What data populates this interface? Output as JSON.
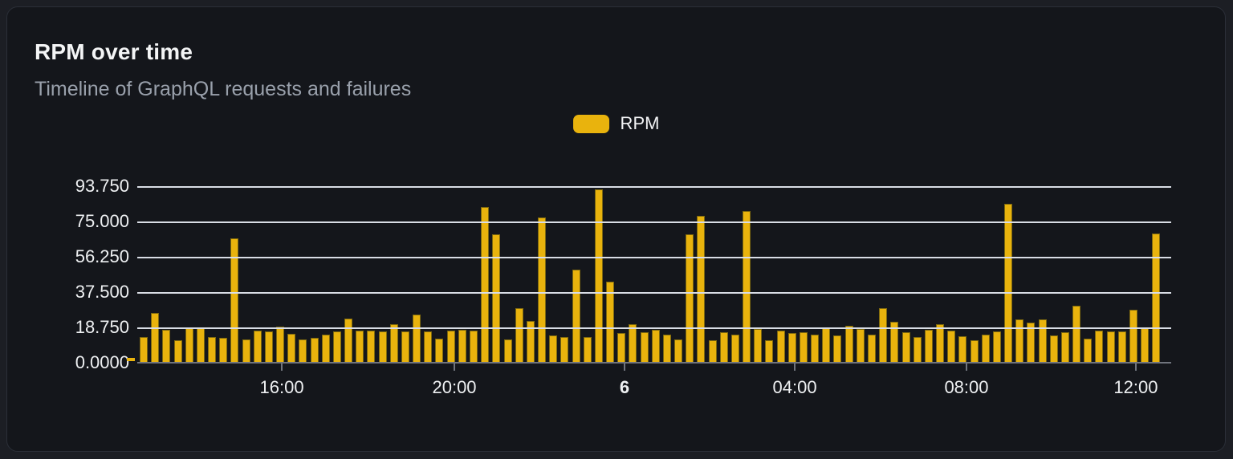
{
  "card": {
    "title": "RPM over time",
    "subtitle": "Timeline of GraphQL requests and failures"
  },
  "legend": {
    "label": "RPM",
    "swatch_color": "#e9b30d"
  },
  "colors": {
    "page_bg": "#1c1e24",
    "card_bg": "#14161b",
    "card_border": "#2b2f38",
    "bar_fill": "#e9b30d",
    "bar_stroke": "#7d680f",
    "gridline": "#d9dde5",
    "axis": "#70747d",
    "title_text": "#f4f5f6",
    "subtitle_text": "#99a0ab",
    "tick_text": "#eef0f2"
  },
  "chart_data": {
    "type": "bar",
    "title": "RPM over time",
    "subtitle": "Timeline of GraphQL requests and failures",
    "xlabel": "",
    "ylabel": "",
    "ylim": [
      0,
      93.75
    ],
    "grid": "horizontal",
    "legend_position": "top-center",
    "y_ticks": [
      {
        "label": "93.750",
        "value": 93.75
      },
      {
        "label": "75.000",
        "value": 75
      },
      {
        "label": "56.250",
        "value": 56.25
      },
      {
        "label": "37.500",
        "value": 37.5
      },
      {
        "label": "18.750",
        "value": 18.75
      },
      {
        "label": "0.0000",
        "value": 0
      }
    ],
    "x_ticks": [
      {
        "label": "16:00",
        "pos_pct": 13.98,
        "bold": false
      },
      {
        "label": "20:00",
        "pos_pct": 30.67,
        "bold": false
      },
      {
        "label": "6",
        "pos_pct": 47.13,
        "bold": true
      },
      {
        "label": "04:00",
        "pos_pct": 63.59,
        "bold": false
      },
      {
        "label": "08:00",
        "pos_pct": 80.2,
        "bold": false
      },
      {
        "label": "12:00",
        "pos_pct": 96.58,
        "bold": false
      }
    ],
    "leading_stub_value": 1.7,
    "series": [
      {
        "name": "RPM",
        "values": [
          13.1,
          26.0,
          17.1,
          11.4,
          17.8,
          18.1,
          13.3,
          12.8,
          65.6,
          12.1,
          16.8,
          16.0,
          18.8,
          15.0,
          12.1,
          12.8,
          14.3,
          16.4,
          23.1,
          16.7,
          16.8,
          16.0,
          20.2,
          16.0,
          25.2,
          16.0,
          12.5,
          16.8,
          17.1,
          16.8,
          82.3,
          67.7,
          11.8,
          28.5,
          21.7,
          76.7,
          14.0,
          13.1,
          48.8,
          13.1,
          91.7,
          42.8,
          15.3,
          20.0,
          15.7,
          17.1,
          14.3,
          12.1,
          67.7,
          77.7,
          11.7,
          15.7,
          14.7,
          80.3,
          17.5,
          11.7,
          16.7,
          15.2,
          15.7,
          14.7,
          18.5,
          14.0,
          19.2,
          17.4,
          14.7,
          28.5,
          21.4,
          15.7,
          13.3,
          17.1,
          20.2,
          16.7,
          13.8,
          11.7,
          14.3,
          16.4,
          84.1,
          22.5,
          20.7,
          22.4,
          14.0,
          15.7,
          29.9,
          12.5,
          16.7,
          16.0,
          16.4,
          27.8,
          17.8,
          68.2
        ]
      }
    ]
  }
}
